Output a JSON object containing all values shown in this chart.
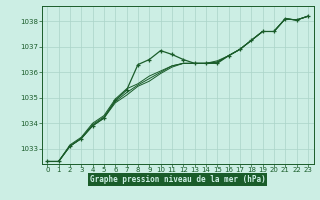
{
  "title": "Graphe pression niveau de la mer (hPa)",
  "background_color": "#cceee4",
  "grid_color": "#aad4c8",
  "line_color": "#1a5c2a",
  "marker_color": "#1a5c2a",
  "xlim": [
    -0.5,
    23.5
  ],
  "ylim": [
    1032.4,
    1038.6
  ],
  "yticks": [
    1033,
    1034,
    1035,
    1036,
    1037,
    1038
  ],
  "xticks": [
    0,
    1,
    2,
    3,
    4,
    5,
    6,
    7,
    8,
    9,
    10,
    11,
    12,
    13,
    14,
    15,
    16,
    17,
    18,
    19,
    20,
    21,
    22,
    23
  ],
  "xlabel_bg": "#1a5c2a",
  "xlabel_fg": "#cceee4",
  "series": {
    "main": [
      1032.5,
      1032.5,
      1033.1,
      1033.4,
      1033.9,
      1034.2,
      1034.9,
      1035.3,
      1036.3,
      1036.5,
      1036.85,
      1036.7,
      1036.5,
      1036.35,
      1036.35,
      1036.35,
      1036.65,
      1036.9,
      1037.25,
      1037.6,
      1037.6,
      1038.1,
      1038.05,
      1038.2
    ],
    "line2": [
      1032.5,
      1032.5,
      1033.1,
      1033.4,
      1033.9,
      1034.2,
      1034.8,
      1035.1,
      1035.45,
      1035.65,
      1035.95,
      1036.2,
      1036.35,
      1036.35,
      1036.35,
      1036.4,
      1036.65,
      1036.9,
      1037.25,
      1037.6,
      1037.6,
      1038.1,
      1038.05,
      1038.2
    ],
    "line3": [
      1032.5,
      1032.5,
      1033.1,
      1033.4,
      1033.95,
      1034.25,
      1034.85,
      1035.2,
      1035.5,
      1035.75,
      1036.0,
      1036.25,
      1036.35,
      1036.35,
      1036.35,
      1036.4,
      1036.65,
      1036.9,
      1037.25,
      1037.6,
      1037.6,
      1038.1,
      1038.05,
      1038.2
    ],
    "line4": [
      1032.5,
      1032.5,
      1033.15,
      1033.45,
      1034.0,
      1034.3,
      1034.95,
      1035.35,
      1035.55,
      1035.85,
      1036.05,
      1036.25,
      1036.35,
      1036.35,
      1036.35,
      1036.45,
      1036.65,
      1036.9,
      1037.25,
      1037.6,
      1037.6,
      1038.1,
      1038.05,
      1038.2
    ]
  }
}
